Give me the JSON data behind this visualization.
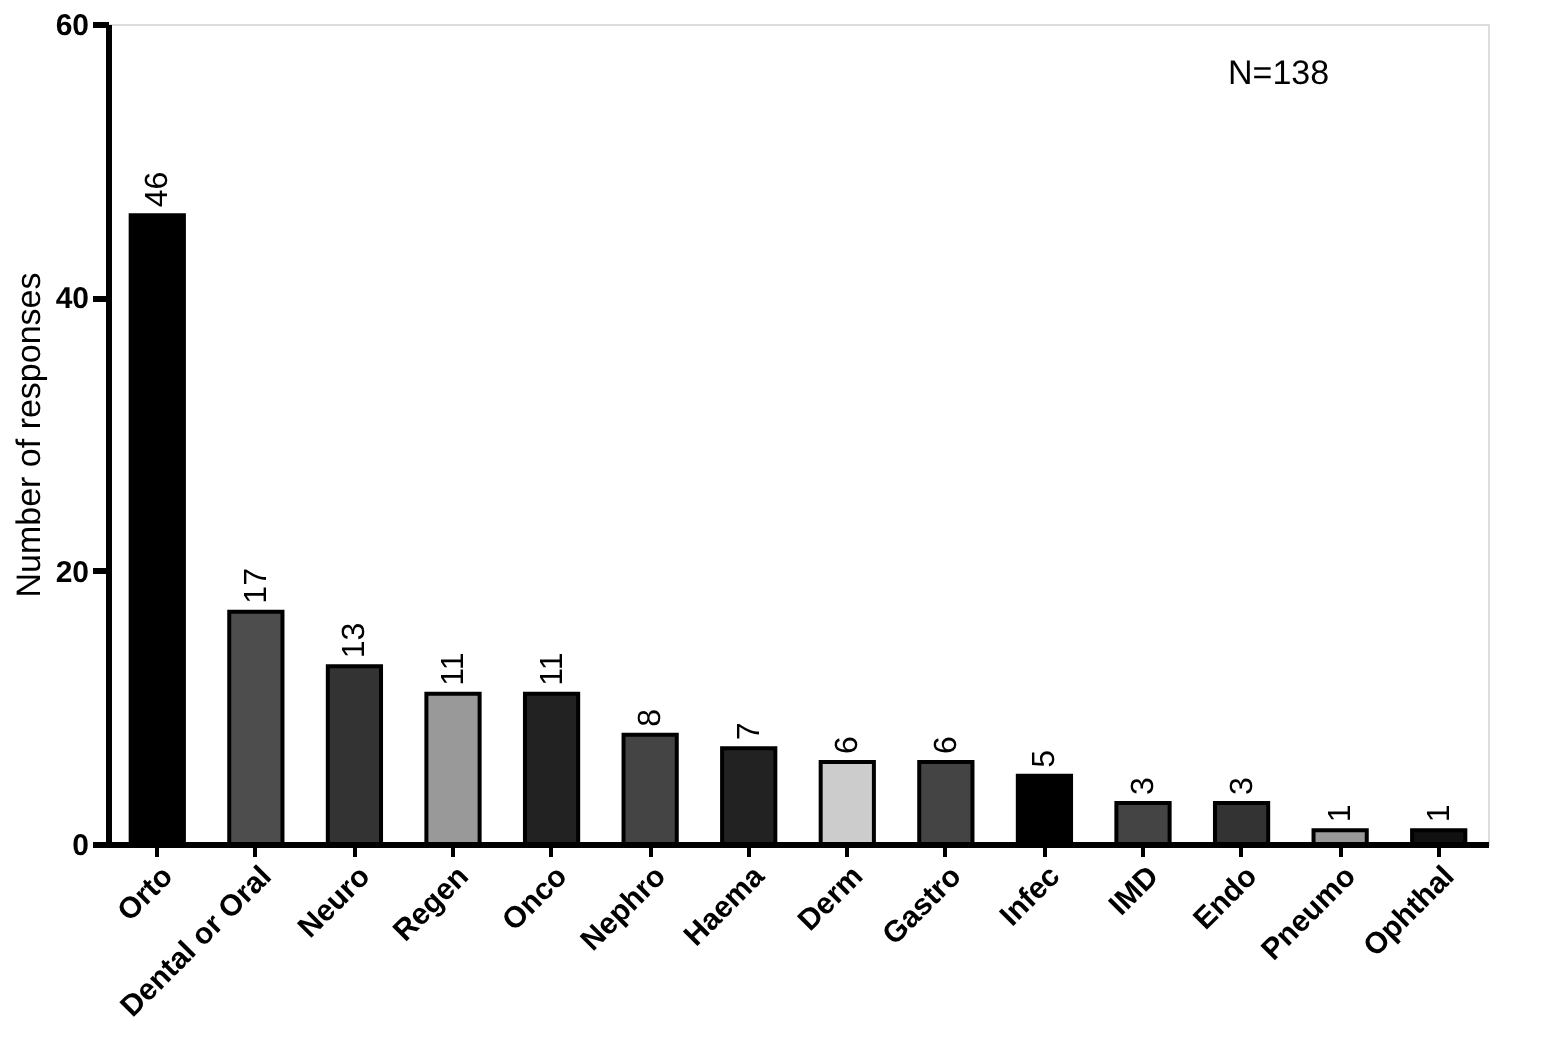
{
  "chart_data": {
    "type": "bar",
    "ylabel": "Number of responses",
    "categories": [
      "Orto",
      "Dental or Oral",
      "Neuro",
      "Regen",
      "Onco",
      "Nephro",
      "Haema",
      "Derm",
      "Gastro",
      "Infec",
      "IMD",
      "Endo",
      "Pneumo",
      "Ophthal"
    ],
    "values": [
      46,
      17,
      13,
      11,
      11,
      8,
      7,
      6,
      6,
      5,
      3,
      3,
      1,
      1
    ],
    "colors": [
      "#000000",
      "#4d4d4d",
      "#333333",
      "#999999",
      "#222222",
      "#444444",
      "#222222",
      "#cccccc",
      "#444444",
      "#000000",
      "#444444",
      "#333333",
      "#999999",
      "#111111"
    ],
    "ylim": [
      0,
      60
    ],
    "yticks": [
      0,
      20,
      40,
      60
    ],
    "grid": false,
    "data_labels": true,
    "annotations": [
      "N=138"
    ]
  }
}
